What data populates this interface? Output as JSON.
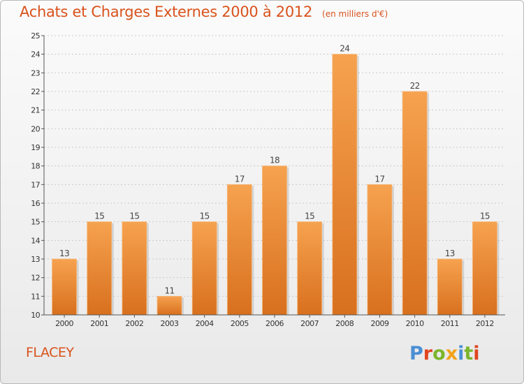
{
  "header": {
    "title": "Achats et Charges Externes 2000 à 2012",
    "unit": "(en milliers d'€)"
  },
  "footer": {
    "commune": "FLACEY",
    "brand": "Proxiti"
  },
  "colors": {
    "title": "#d9521c",
    "bar_light": "#f6a24f",
    "bar_dark": "#d8701e",
    "brand_letters": [
      "#4a8fd4",
      "#e0451f",
      "#7bb52c",
      "#f2a21a",
      "#4a8fd4",
      "#7bb52c",
      "#e0451f"
    ]
  },
  "chart_data": {
    "type": "bar",
    "categories": [
      "2000",
      "2001",
      "2002",
      "2003",
      "2004",
      "2005",
      "2006",
      "2007",
      "2008",
      "2009",
      "2010",
      "2011",
      "2012"
    ],
    "values": [
      13,
      15,
      15,
      11,
      15,
      17,
      18,
      15,
      24,
      17,
      22,
      13,
      15
    ],
    "ylim": [
      10,
      25
    ],
    "yticks": [
      10,
      11,
      12,
      13,
      14,
      15,
      16,
      17,
      18,
      19,
      20,
      21,
      22,
      23,
      24,
      25
    ],
    "grid": true,
    "data_labels": true
  }
}
